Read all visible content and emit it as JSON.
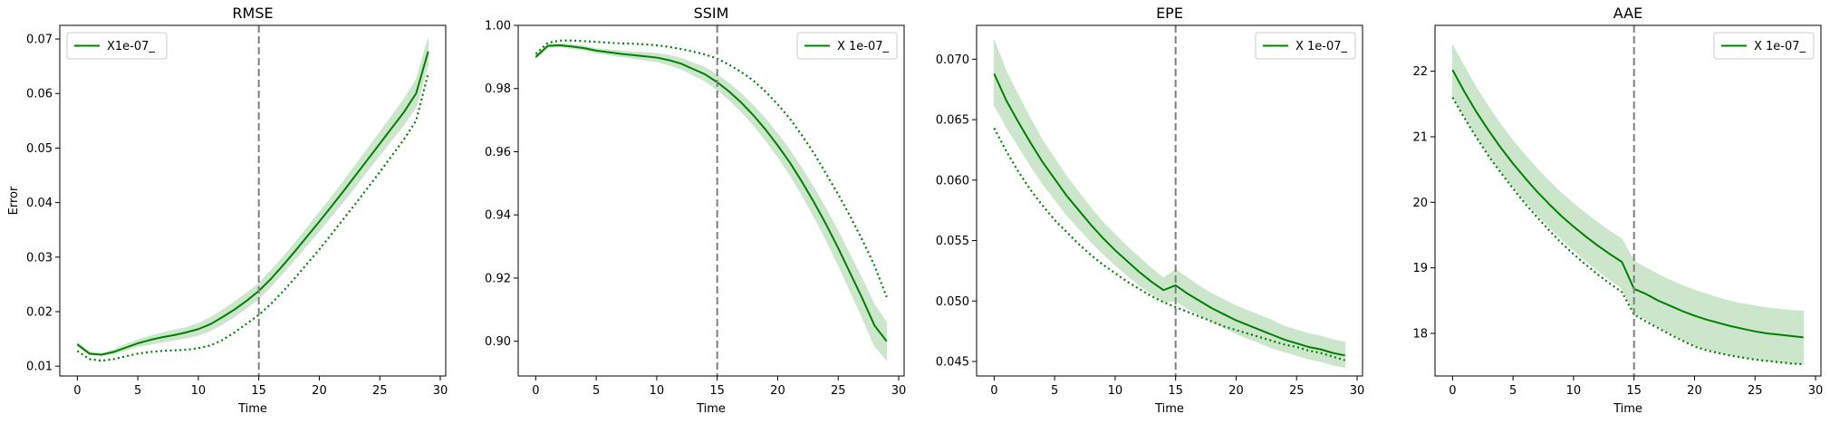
{
  "chart_data": [
    {
      "type": "line",
      "title": "RMSE",
      "xlabel": "Time",
      "ylabel": "Error",
      "xlim": [
        -1.45,
        30.45
      ],
      "ylim": [
        0.0082,
        0.0725
      ],
      "xticks": [
        0,
        5,
        10,
        15,
        20,
        25,
        30
      ],
      "yticks": [
        0.01,
        0.02,
        0.03,
        0.04,
        0.05,
        0.06,
        0.07
      ],
      "ytick_labels": [
        "0.01",
        "0.02",
        "0.03",
        "0.04",
        "0.05",
        "0.06",
        "0.07"
      ],
      "vline": 15,
      "legend": {
        "position": "top-left",
        "label": "X1e-07_"
      },
      "series": [
        {
          "role": "mean",
          "style": "solid",
          "color": "#008000",
          "x": [
            0,
            1,
            2,
            3,
            4,
            5,
            6,
            7,
            8,
            9,
            10,
            11,
            12,
            13,
            14,
            15,
            16,
            17,
            18,
            19,
            20,
            21,
            22,
            23,
            24,
            25,
            26,
            27,
            28,
            29
          ],
          "y": [
            0.014,
            0.0123,
            0.0121,
            0.0126,
            0.0134,
            0.0142,
            0.0148,
            0.0153,
            0.0157,
            0.0162,
            0.0168,
            0.0177,
            0.019,
            0.0204,
            0.022,
            0.0238,
            0.026,
            0.0285,
            0.0311,
            0.0338,
            0.0365,
            0.0393,
            0.0421,
            0.045,
            0.0479,
            0.0508,
            0.0537,
            0.0566,
            0.06,
            0.0677
          ]
        },
        {
          "role": "comparison",
          "style": "dotted",
          "color": "#008000",
          "x": [
            0,
            1,
            2,
            3,
            4,
            5,
            6,
            7,
            8,
            9,
            10,
            11,
            12,
            13,
            14,
            15,
            16,
            17,
            18,
            19,
            20,
            21,
            22,
            23,
            24,
            25,
            26,
            27,
            28,
            29
          ],
          "y": [
            0.0128,
            0.0113,
            0.011,
            0.0113,
            0.0118,
            0.0123,
            0.0126,
            0.0128,
            0.0129,
            0.013,
            0.0133,
            0.0138,
            0.0148,
            0.0162,
            0.0178,
            0.0194,
            0.0214,
            0.0237,
            0.0262,
            0.0288,
            0.0314,
            0.0342,
            0.037,
            0.0398,
            0.0427,
            0.0456,
            0.0486,
            0.0516,
            0.055,
            0.0637
          ]
        }
      ],
      "band": {
        "color": "#cce6cc",
        "x": [
          0,
          1,
          2,
          3,
          4,
          5,
          6,
          7,
          8,
          9,
          10,
          11,
          12,
          13,
          14,
          15,
          16,
          17,
          18,
          19,
          20,
          21,
          22,
          23,
          24,
          25,
          26,
          27,
          28,
          29
        ],
        "low": [
          0.0137,
          0.0121,
          0.012,
          0.0123,
          0.0129,
          0.0136,
          0.014,
          0.0144,
          0.0148,
          0.0152,
          0.0157,
          0.0165,
          0.0177,
          0.0191,
          0.0207,
          0.0224,
          0.0246,
          0.0271,
          0.0296,
          0.0322,
          0.0348,
          0.0375,
          0.0402,
          0.043,
          0.0459,
          0.0487,
          0.0515,
          0.0543,
          0.0575,
          0.0653
        ],
        "high": [
          0.0143,
          0.0126,
          0.0123,
          0.013,
          0.014,
          0.0148,
          0.0155,
          0.0161,
          0.0166,
          0.0171,
          0.0178,
          0.0189,
          0.0203,
          0.0218,
          0.0234,
          0.0252,
          0.0275,
          0.03,
          0.0326,
          0.0354,
          0.0382,
          0.041,
          0.0439,
          0.0469,
          0.0499,
          0.0529,
          0.0559,
          0.059,
          0.0625,
          0.0701
        ]
      }
    },
    {
      "type": "line",
      "title": "SSIM",
      "xlabel": "Time",
      "ylabel": "",
      "xlim": [
        -1.45,
        30.45
      ],
      "ylim": [
        0.889,
        1.0
      ],
      "xticks": [
        0,
        5,
        10,
        15,
        20,
        25,
        30
      ],
      "yticks": [
        0.9,
        0.92,
        0.94,
        0.96,
        0.98,
        1.0
      ],
      "ytick_labels": [
        "0.90",
        "0.92",
        "0.94",
        "0.96",
        "0.98",
        "1.00"
      ],
      "vline": 15,
      "legend": {
        "position": "top-right",
        "label": "X 1e-07_"
      },
      "series": [
        {
          "role": "mean",
          "style": "solid",
          "color": "#008000",
          "x": [
            0,
            1,
            2,
            3,
            4,
            5,
            6,
            7,
            8,
            9,
            10,
            11,
            12,
            13,
            14,
            15,
            16,
            17,
            18,
            19,
            20,
            21,
            22,
            23,
            24,
            25,
            26,
            27,
            28,
            29
          ],
          "y": [
            0.99,
            0.9935,
            0.9937,
            0.9933,
            0.9928,
            0.992,
            0.9915,
            0.991,
            0.9906,
            0.9902,
            0.9898,
            0.989,
            0.9879,
            0.9862,
            0.9845,
            0.982,
            0.979,
            0.9755,
            0.9715,
            0.967,
            0.962,
            0.9566,
            0.9505,
            0.944,
            0.937,
            0.9295,
            0.9215,
            0.9135,
            0.905,
            0.9
          ]
        },
        {
          "role": "comparison",
          "style": "dotted",
          "color": "#008000",
          "x": [
            0,
            1,
            2,
            3,
            4,
            5,
            6,
            7,
            8,
            9,
            10,
            11,
            12,
            13,
            14,
            15,
            16,
            17,
            18,
            19,
            20,
            21,
            22,
            23,
            24,
            25,
            26,
            27,
            28,
            29
          ],
          "y": [
            0.991,
            0.9945,
            0.9952,
            0.9952,
            0.995,
            0.9948,
            0.9945,
            0.9943,
            0.9942,
            0.994,
            0.9937,
            0.9932,
            0.9925,
            0.9917,
            0.9908,
            0.9895,
            0.9875,
            0.9852,
            0.9825,
            0.979,
            0.975,
            0.9705,
            0.9652,
            0.9595,
            0.953,
            0.9465,
            0.9395,
            0.932,
            0.924,
            0.914
          ]
        }
      ],
      "band": {
        "color": "#cce6cc",
        "x": [
          0,
          1,
          2,
          3,
          4,
          5,
          6,
          7,
          8,
          9,
          10,
          11,
          12,
          13,
          14,
          15,
          16,
          17,
          18,
          19,
          20,
          21,
          22,
          23,
          24,
          25,
          26,
          27,
          28,
          29
        ],
        "low": [
          0.9895,
          0.993,
          0.9932,
          0.9927,
          0.9921,
          0.9913,
          0.9907,
          0.9901,
          0.9896,
          0.989,
          0.9885,
          0.9875,
          0.9862,
          0.9843,
          0.9824,
          0.9796,
          0.9764,
          0.9727,
          0.9684,
          0.9636,
          0.9584,
          0.9527,
          0.9463,
          0.9394,
          0.9321,
          0.9242,
          0.9158,
          0.9074,
          0.8985,
          0.894
        ],
        "high": [
          0.9905,
          0.994,
          0.9942,
          0.9939,
          0.9935,
          0.9927,
          0.9923,
          0.9919,
          0.9916,
          0.9914,
          0.9911,
          0.9905,
          0.9896,
          0.9881,
          0.9866,
          0.9844,
          0.9816,
          0.9783,
          0.9746,
          0.9704,
          0.9656,
          0.9605,
          0.9547,
          0.9486,
          0.9419,
          0.9348,
          0.9272,
          0.9196,
          0.9115,
          0.906
        ]
      }
    },
    {
      "type": "line",
      "title": "EPE",
      "xlabel": "Time",
      "ylabel": "",
      "xlim": [
        -1.45,
        30.45
      ],
      "ylim": [
        0.0438,
        0.0728
      ],
      "xticks": [
        0,
        5,
        10,
        15,
        20,
        25,
        30
      ],
      "yticks": [
        0.045,
        0.05,
        0.055,
        0.06,
        0.065,
        0.07
      ],
      "ytick_labels": [
        "0.045",
        "0.050",
        "0.055",
        "0.060",
        "0.065",
        "0.070"
      ],
      "vline": 15,
      "legend": {
        "position": "top-right",
        "label": "X 1e-07_"
      },
      "series": [
        {
          "role": "mean",
          "style": "solid",
          "color": "#008000",
          "x": [
            0,
            1,
            2,
            3,
            4,
            5,
            6,
            7,
            8,
            9,
            10,
            11,
            12,
            13,
            14,
            15,
            16,
            17,
            18,
            19,
            20,
            21,
            22,
            23,
            24,
            25,
            26,
            27,
            28,
            29
          ],
          "y": [
            0.0688,
            0.0666,
            0.0648,
            0.0631,
            0.0615,
            0.0601,
            0.0587,
            0.0575,
            0.0563,
            0.0552,
            0.0542,
            0.0533,
            0.0524,
            0.0516,
            0.0509,
            0.0513,
            0.0506,
            0.05,
            0.0494,
            0.0489,
            0.0484,
            0.048,
            0.0476,
            0.0472,
            0.0468,
            0.0465,
            0.0462,
            0.046,
            0.0457,
            0.0455
          ]
        },
        {
          "role": "comparison",
          "style": "dotted",
          "color": "#008000",
          "x": [
            0,
            1,
            2,
            3,
            4,
            5,
            6,
            7,
            8,
            9,
            10,
            11,
            12,
            13,
            14,
            15,
            16,
            17,
            18,
            19,
            20,
            21,
            22,
            23,
            24,
            25,
            26,
            27,
            28,
            29
          ],
          "y": [
            0.0643,
            0.0624,
            0.0607,
            0.0592,
            0.0579,
            0.0567,
            0.0557,
            0.0547,
            0.0538,
            0.053,
            0.0523,
            0.0516,
            0.051,
            0.0504,
            0.0499,
            0.0495,
            0.0491,
            0.0487,
            0.0483,
            0.0479,
            0.0476,
            0.0473,
            0.047,
            0.0467,
            0.0464,
            0.0462,
            0.0459,
            0.0457,
            0.0454,
            0.0451
          ]
        }
      ],
      "band": {
        "color": "#cce6cc",
        "x": [
          0,
          1,
          2,
          3,
          4,
          5,
          6,
          7,
          8,
          9,
          10,
          11,
          12,
          13,
          14,
          15,
          16,
          17,
          18,
          19,
          20,
          21,
          22,
          23,
          24,
          25,
          26,
          27,
          28,
          29
        ],
        "low": [
          0.0662,
          0.0644,
          0.0628,
          0.0612,
          0.0597,
          0.0584,
          0.0571,
          0.056,
          0.0549,
          0.0539,
          0.053,
          0.0521,
          0.0513,
          0.0506,
          0.0499,
          0.05,
          0.0494,
          0.0488,
          0.0483,
          0.0478,
          0.0473,
          0.0469,
          0.0465,
          0.0461,
          0.0458,
          0.0455,
          0.0452,
          0.045,
          0.0447,
          0.0445
        ],
        "high": [
          0.0716,
          0.069,
          0.067,
          0.0651,
          0.0633,
          0.0618,
          0.0603,
          0.059,
          0.0577,
          0.0565,
          0.0555,
          0.0545,
          0.0536,
          0.0527,
          0.0519,
          0.0526,
          0.0519,
          0.0512,
          0.0506,
          0.0501,
          0.0496,
          0.0492,
          0.0488,
          0.0484,
          0.0479,
          0.0476,
          0.0473,
          0.0471,
          0.0468,
          0.0466
        ]
      }
    },
    {
      "type": "line",
      "title": "AAE",
      "xlabel": "Time",
      "ylabel": "",
      "xlim": [
        -1.45,
        30.45
      ],
      "ylim": [
        17.35,
        22.7
      ],
      "xticks": [
        0,
        5,
        10,
        15,
        20,
        25,
        30
      ],
      "yticks": [
        18,
        19,
        20,
        21,
        22
      ],
      "ytick_labels": [
        "18",
        "19",
        "20",
        "21",
        "22"
      ],
      "vline": 15,
      "legend": {
        "position": "top-right",
        "label": "X 1e-07_"
      },
      "series": [
        {
          "role": "mean",
          "style": "solid",
          "color": "#008000",
          "x": [
            0,
            1,
            2,
            3,
            4,
            5,
            6,
            7,
            8,
            9,
            10,
            11,
            12,
            13,
            14,
            15,
            16,
            17,
            18,
            19,
            20,
            21,
            22,
            23,
            24,
            25,
            26,
            27,
            28,
            29
          ],
          "y": [
            22.02,
            21.68,
            21.37,
            21.09,
            20.83,
            20.59,
            20.37,
            20.16,
            19.97,
            19.79,
            19.63,
            19.48,
            19.34,
            19.21,
            19.09,
            18.68,
            18.6,
            18.5,
            18.42,
            18.34,
            18.27,
            18.21,
            18.16,
            18.11,
            18.07,
            18.03,
            18.0,
            17.98,
            17.96,
            17.94
          ]
        },
        {
          "role": "comparison",
          "style": "dotted",
          "color": "#008000",
          "x": [
            0,
            1,
            2,
            3,
            4,
            5,
            6,
            7,
            8,
            9,
            10,
            11,
            12,
            13,
            14,
            15,
            16,
            17,
            18,
            19,
            20,
            21,
            22,
            23,
            24,
            25,
            26,
            27,
            28,
            29
          ],
          "y": [
            21.6,
            21.28,
            20.98,
            20.7,
            20.45,
            20.21,
            19.98,
            19.77,
            19.57,
            19.38,
            19.21,
            19.05,
            18.9,
            18.76,
            18.63,
            18.29,
            18.18,
            18.08,
            17.98,
            17.89,
            17.8,
            17.74,
            17.7,
            17.66,
            17.63,
            17.6,
            17.58,
            17.56,
            17.54,
            17.53
          ]
        }
      ],
      "band": {
        "color": "#cce6cc",
        "x": [
          0,
          1,
          2,
          3,
          4,
          5,
          6,
          7,
          8,
          9,
          10,
          11,
          12,
          13,
          14,
          15,
          16,
          17,
          18,
          19,
          20,
          21,
          22,
          23,
          24,
          25,
          26,
          27,
          28,
          29
        ],
        "low": [
          21.62,
          21.3,
          21.0,
          20.72,
          20.47,
          20.24,
          20.02,
          19.81,
          19.62,
          19.44,
          19.27,
          19.11,
          18.96,
          18.82,
          18.69,
          18.32,
          18.21,
          18.1,
          18.0,
          17.9,
          17.82,
          17.75,
          17.71,
          17.67,
          17.63,
          17.6,
          17.58,
          17.56,
          17.54,
          17.53
        ],
        "high": [
          22.4,
          22.06,
          21.74,
          21.45,
          21.18,
          20.94,
          20.72,
          20.51,
          20.32,
          20.14,
          19.98,
          19.83,
          19.69,
          19.56,
          19.44,
          19.1,
          19.0,
          18.9,
          18.81,
          18.73,
          18.66,
          18.6,
          18.54,
          18.49,
          18.45,
          18.42,
          18.39,
          18.37,
          18.35,
          18.34
        ]
      }
    }
  ]
}
